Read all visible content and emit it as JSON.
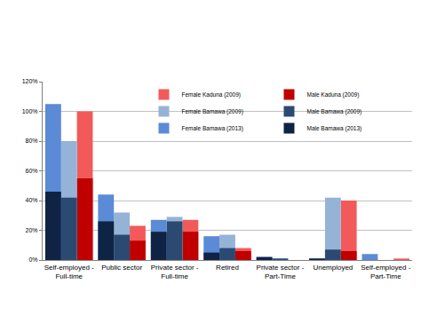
{
  "chart_data": {
    "type": "bar",
    "categories": [
      "Self-employed - Full-time",
      "Public sector",
      "Private sector - Full-time",
      "Retired",
      "Private sector - Part-Time",
      "Unemployed",
      "Self-employed - Part-Time"
    ],
    "series": [
      {
        "name": "Female Kaduna (2009)",
        "color": "#f25a5a",
        "values": [
          100,
          23,
          27,
          8,
          0,
          40,
          1
        ]
      },
      {
        "name": "Male Kaduna (2009)",
        "color": "#c00000",
        "values": [
          55,
          13,
          19,
          6,
          0,
          6,
          0
        ]
      },
      {
        "name": "Female Bamawa (2009)",
        "color": "#95b3d7",
        "values": [
          80,
          32,
          29,
          17,
          1,
          42,
          0
        ]
      },
      {
        "name": "Male Bamawa (2009)",
        "color": "#2b4a72",
        "values": [
          42,
          17,
          26,
          8,
          1,
          7,
          0
        ]
      },
      {
        "name": "Female Bamawa (2013)",
        "color": "#5b8ad6",
        "values": [
          105,
          44,
          27,
          16,
          2,
          1,
          4
        ]
      },
      {
        "name": "Male Bamawa (2013)",
        "color": "#0f2344",
        "values": [
          46,
          26,
          19,
          5,
          2,
          1,
          0
        ]
      }
    ],
    "ylim": [
      0,
      120
    ],
    "yticks": [
      {
        "value": 0,
        "label": "0%"
      },
      {
        "value": 20,
        "label": "20%"
      },
      {
        "value": 40,
        "label": "40%"
      },
      {
        "value": 60,
        "label": "60%"
      },
      {
        "value": 80,
        "label": "80%"
      },
      {
        "value": 100,
        "label": "100%"
      },
      {
        "value": 120,
        "label": "120%"
      }
    ],
    "grid": true,
    "legend": "top"
  }
}
